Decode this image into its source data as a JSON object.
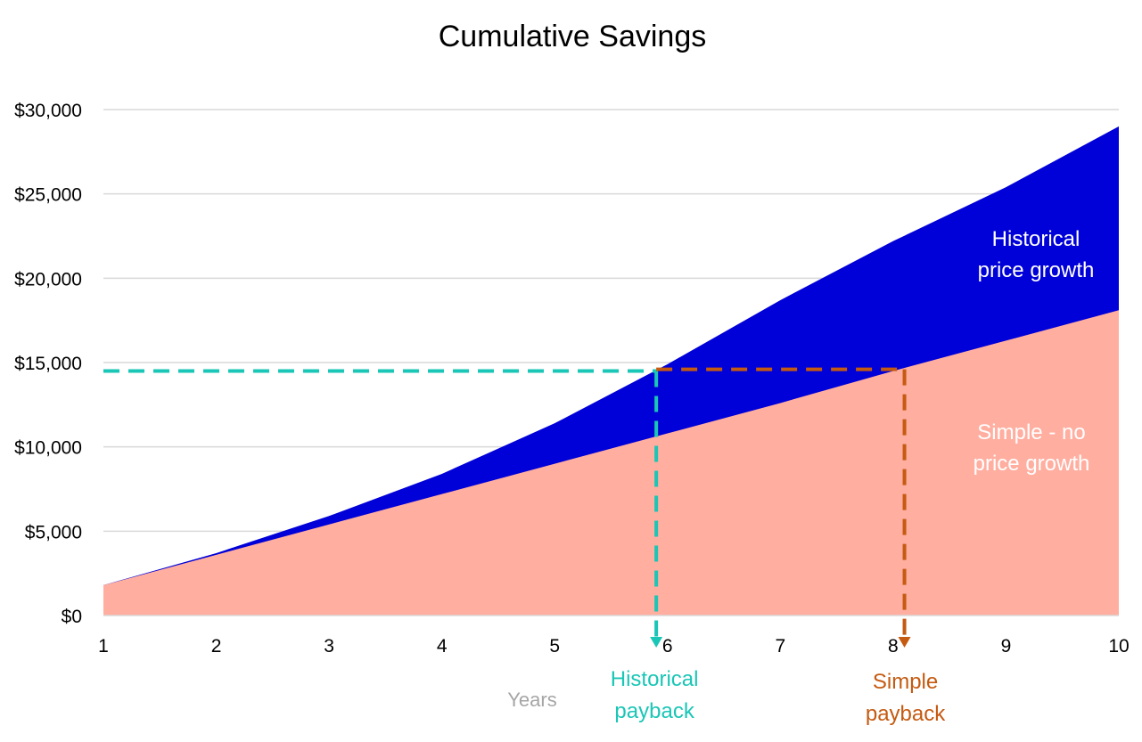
{
  "chart_data": {
    "type": "area",
    "title": "Cumulative Savings",
    "xlabel": "Years",
    "ylabel": "",
    "x": [
      1,
      2,
      3,
      4,
      5,
      6,
      7,
      8,
      9,
      10
    ],
    "xlim": [
      1,
      10
    ],
    "ylim": [
      0,
      30000
    ],
    "yticks": [
      0,
      5000,
      10000,
      15000,
      20000,
      25000,
      30000
    ],
    "ytick_labels": [
      "$0",
      "$5,000",
      "$10,000",
      "$15,000",
      "$20,000",
      "$25,000",
      "$30,000"
    ],
    "xtick_labels": [
      "1",
      "2",
      "3",
      "4",
      "5",
      "6",
      "7",
      "8",
      "9",
      "10"
    ],
    "grid": true,
    "series": [
      {
        "name": "Historical price growth",
        "color": "#0000d8",
        "values": [
          1800,
          3700,
          5900,
          8400,
          11400,
          14900,
          18700,
          22200,
          25400,
          29000
        ]
      },
      {
        "name": "Simple - no price growth",
        "color": "#ffaea0",
        "values": [
          1800,
          3600,
          5400,
          7200,
          9000,
          10800,
          12600,
          14500,
          16300,
          18100
        ]
      }
    ],
    "annotations": [
      {
        "id": "historical",
        "label_lines": [
          "Historical",
          "payback"
        ],
        "color": "#1ac6b6",
        "x_start": 1,
        "x_end": 5.9,
        "y": 14500
      },
      {
        "id": "simple",
        "label_lines": [
          "Simple",
          "payback"
        ],
        "color": "#c55a11",
        "x_start": 5.9,
        "x_end": 8.1,
        "y": 14600
      }
    ],
    "series_labels": [
      {
        "lines": [
          "Historical",
          "price growth"
        ],
        "color": "#ffffff"
      },
      {
        "lines": [
          "Simple - no",
          "price growth"
        ],
        "color": "#ffffff"
      }
    ]
  }
}
